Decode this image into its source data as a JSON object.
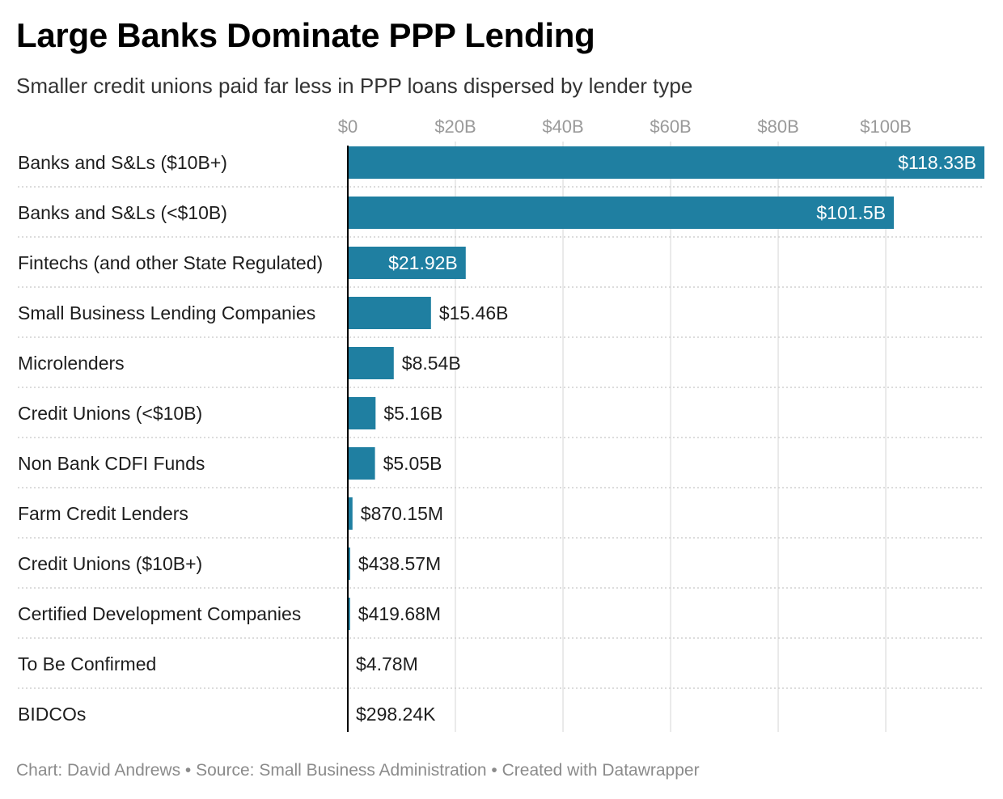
{
  "header": {
    "title": "Large Banks Dominate PPP Lending",
    "subtitle": "Smaller credit unions paid far less in PPP loans dispersed by lender type"
  },
  "footer": {
    "credit": "Chart: David Andrews • Source: Small Business Administration • Created with Datawrapper"
  },
  "colors": {
    "bar": "#1f7fa1",
    "label_inside": "#ffffff",
    "label_outside": "#1d1d1d",
    "grid": "#e3e3e3",
    "separator": "#d0d0d0",
    "axis": "#000000"
  },
  "chart_data": {
    "type": "bar",
    "orientation": "horizontal",
    "title": "Large Banks Dominate PPP Lending",
    "subtitle": "Smaller credit unions paid far less in PPP loans dispersed by lender type",
    "units": "billions USD",
    "xlim": [
      0,
      118.33
    ],
    "grid": true,
    "x_ticks": [
      {
        "value": 0,
        "label": "$0"
      },
      {
        "value": 20,
        "label": "$20B"
      },
      {
        "value": 40,
        "label": "$40B"
      },
      {
        "value": 60,
        "label": "$60B"
      },
      {
        "value": 80,
        "label": "$80B"
      },
      {
        "value": 100,
        "label": "$100B"
      }
    ],
    "categories": [
      "Banks and S&Ls ($10B+)",
      "Banks and S&Ls (<$10B)",
      "Fintechs (and other State Regulated)",
      "Small Business Lending Companies",
      "Microlenders",
      "Credit Unions (<$10B)",
      "Non Bank CDFI Funds",
      "Farm Credit Lenders",
      "Credit Unions ($10B+)",
      "Certified Development Companies",
      "To Be Confirmed",
      "BIDCOs"
    ],
    "values": [
      118.33,
      101.5,
      21.92,
      15.46,
      8.54,
      5.16,
      5.05,
      0.87015,
      0.43857,
      0.41968,
      0.00478,
      0.00029824
    ],
    "value_labels": [
      "$118.33B",
      "$101.5B",
      "$21.92B",
      "$15.46B",
      "$8.54B",
      "$5.16B",
      "$5.05B",
      "$870.15M",
      "$438.57M",
      "$419.68M",
      "$4.78M",
      "$298.24K"
    ]
  }
}
